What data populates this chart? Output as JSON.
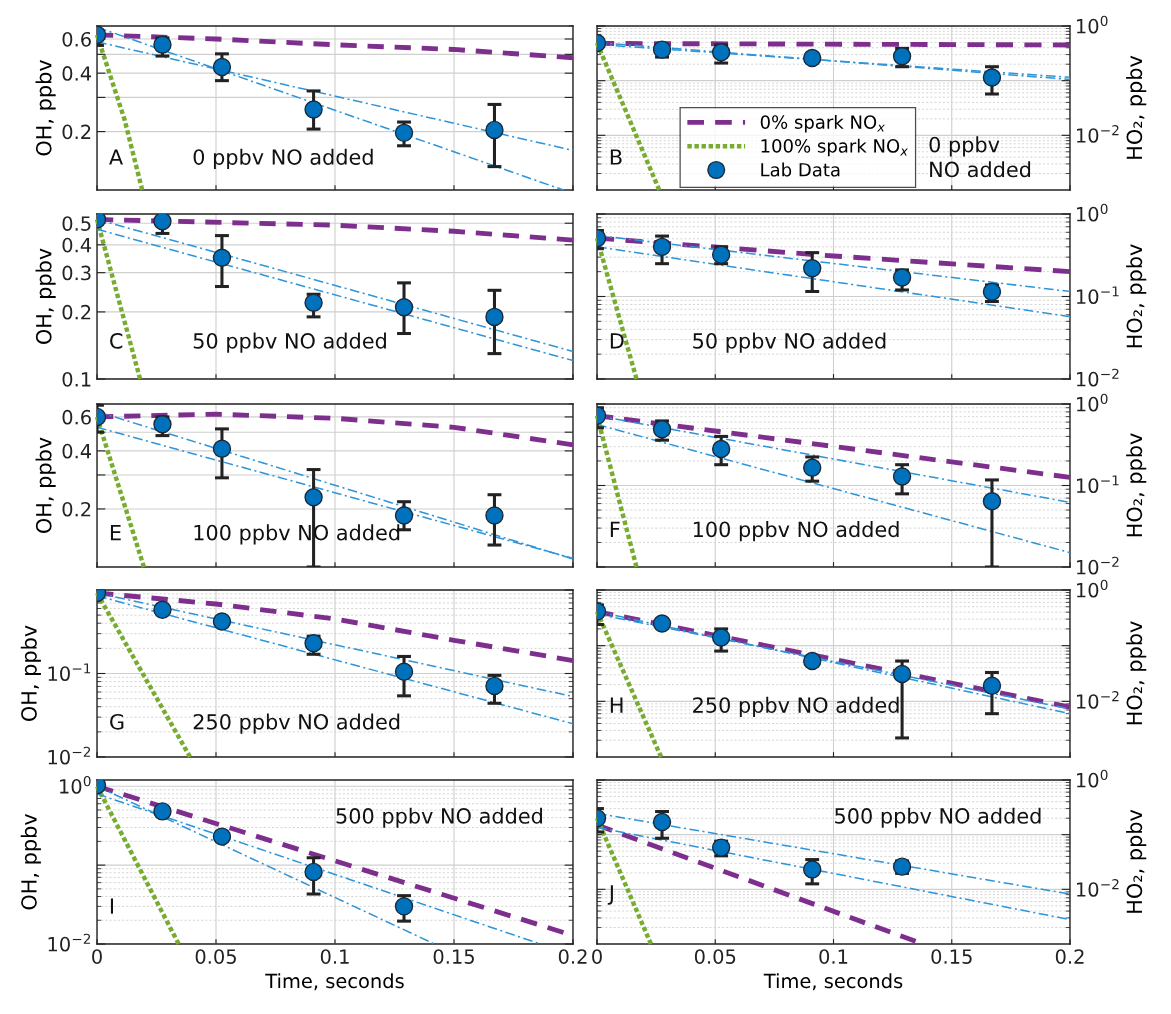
{
  "chart_data": [
    {
      "type": "line",
      "xlim": [
        0,
        0.2
      ],
      "xticks": [
        0,
        0.05,
        0.1,
        0.15,
        0.2
      ],
      "ylim": [
        0.1,
        0.7
      ],
      "yticks": [
        0.2,
        {
          "value": 0.3,
          "label": null
        },
        0.4,
        {
          "value": 0.5,
          "label": null
        },
        0.6
      ],
      "ylabel": "OH, ppbv",
      "log": "y",
      "grid": true,
      "tick_labels": "y",
      "annotations": [
        "A",
        "0 ppbv NO added"
      ],
      "series": [
        {
          "type": "line",
          "color": "#7e2f8e",
          "line_style": "dashed",
          "x": [
            0,
            0.05,
            0.1,
            0.15,
            0.2
          ],
          "values": [
            0.63,
            0.6,
            0.56,
            0.53,
            0.48
          ]
        },
        {
          "type": "line",
          "color": "#77ac30",
          "line_style": "dotted",
          "x": [
            0,
            0.0116,
            0.019
          ],
          "values": [
            0.63,
            0.23,
            0.1
          ]
        },
        {
          "type": "scatter",
          "color": "#0072bd",
          "marker": "circle",
          "x": [
            0,
            0.0275,
            0.0525,
            0.091,
            0.129,
            0.167
          ],
          "values": [
            0.63,
            0.56,
            0.43,
            0.26,
            0.197,
            0.204
          ],
          "errors": [
            [
              0.556,
              0.711
            ],
            [
              0.49,
              0.608
            ],
            [
              0.366,
              0.503
            ],
            [
              0.206,
              0.324
            ],
            [
              0.169,
              0.224
            ],
            [
              0.132,
              0.276
            ]
          ]
        },
        {
          "type": "line",
          "color": "#2f95d9",
          "line_style": "dashdot",
          "x": [
            0,
            0.196
          ],
          "values": [
            0.69,
            0.1
          ]
        },
        {
          "type": "line",
          "color": "#2f95d9",
          "line_style": "dashdot",
          "x": [
            0,
            0.2
          ],
          "values": [
            0.58,
            0.16
          ]
        }
      ]
    },
    {
      "type": "line",
      "xlim": [
        0,
        0.2
      ],
      "xticks": [
        0,
        0.05,
        0.1,
        0.15,
        0.2
      ],
      "ylim": [
        0.001,
        1
      ],
      "yticks": [
        {
          "value": 0.01,
          "label": "10$^{−2}$"
        },
        {
          "value": 0.1,
          "label": null
        },
        {
          "value": 1,
          "label": "10$^{0}$"
        }
      ],
      "ylabel": "HO₂, ppbv",
      "log": "y",
      "grid": true,
      "tick_labels": "y",
      "legend": "bottom left",
      "annotations": [
        "B",
        "0 ppbv\nNO added"
      ],
      "series": [
        {
          "name": "0% spark NO$_{x}$",
          "type": "line",
          "color": "#7e2f8e",
          "line_style": "dashed",
          "x": [
            0,
            0.2
          ],
          "values": [
            0.48,
            0.45
          ]
        },
        {
          "name": "100% spark NO$_{x}$",
          "type": "line",
          "color": "#77ac30",
          "line_style": "dotted",
          "x": [
            0,
            0.0263
          ],
          "values": [
            0.49,
            0.001
          ]
        },
        {
          "name": "Lab Data",
          "type": "scatter",
          "color": "#0072bd",
          "marker": "circle",
          "x": [
            0,
            0.0275,
            0.0525,
            0.091,
            0.129,
            0.167
          ],
          "values": [
            0.49,
            0.37,
            0.33,
            0.26,
            0.28,
            0.114
          ],
          "errors": [
            null,
            [
              0.27,
              0.45
            ],
            [
              0.21,
              0.45
            ],
            null,
            [
              0.18,
              0.39
            ],
            [
              0.057,
              0.18
            ]
          ]
        },
        {
          "type": "line",
          "color": "#2f95d9",
          "line_style": "dashdot",
          "x": [
            0,
            0.2
          ],
          "values": [
            0.5,
            0.105
          ]
        },
        {
          "type": "line",
          "color": "#2f95d9",
          "line_style": "dashdot",
          "x": [
            0,
            0.2
          ],
          "values": [
            0.46,
            0.115
          ]
        }
      ]
    },
    {
      "type": "line",
      "xlim": [
        0,
        0.2
      ],
      "xticks": [
        0,
        0.05,
        0.1,
        0.15,
        0.2
      ],
      "ylim": [
        0.1,
        0.55
      ],
      "yticks": [
        0.1,
        0.2,
        0.3,
        0.4,
        0.5
      ],
      "ylabel": "OH, ppbv",
      "log": "y",
      "grid": true,
      "tick_labels": "y",
      "annotations": [
        "C",
        "50 ppbv NO added"
      ],
      "series": [
        {
          "type": "line",
          "color": "#7e2f8e",
          "line_style": "dashed",
          "x": [
            0,
            0.1,
            0.15,
            0.2
          ],
          "values": [
            0.52,
            0.49,
            0.46,
            0.42
          ]
        },
        {
          "type": "line",
          "color": "#77ac30",
          "line_style": "dotted",
          "x": [
            0,
            0.0181
          ],
          "values": [
            0.52,
            0.1
          ]
        },
        {
          "type": "scatter",
          "color": "#0072bd",
          "marker": "circle",
          "x": [
            0,
            0.0275,
            0.0525,
            0.091,
            0.129,
            0.167
          ],
          "values": [
            0.52,
            0.51,
            0.35,
            0.22,
            0.21,
            0.19
          ],
          "errors": [
            null,
            [
              0.45,
              0.56
            ],
            [
              0.26,
              0.44
            ],
            [
              0.19,
              0.24
            ],
            [
              0.16,
              0.27
            ],
            [
              0.13,
              0.25
            ]
          ]
        },
        {
          "type": "line",
          "color": "#2f95d9",
          "line_style": "dashdot",
          "x": [
            0,
            0.2
          ],
          "values": [
            0.52,
            0.133
          ]
        },
        {
          "type": "line",
          "color": "#2f95d9",
          "line_style": "dashdot",
          "x": [
            0,
            0.2
          ],
          "values": [
            0.47,
            0.121
          ]
        }
      ]
    },
    {
      "type": "line",
      "xlim": [
        0,
        0.2
      ],
      "xticks": [
        0,
        0.05,
        0.1,
        0.15,
        0.2
      ],
      "ylim": [
        0.01,
        1
      ],
      "yticks": [
        {
          "value": 0.01,
          "label": "10$^{−2}$"
        },
        {
          "value": 0.1,
          "label": "10$^{−1}$"
        },
        {
          "value": 1,
          "label": "10$^{0}$"
        }
      ],
      "ylabel": "HO₂, ppbv",
      "log": "y",
      "grid": true,
      "tick_labels": "y",
      "annotations": [
        "D",
        "50 ppbv NO added"
      ],
      "series": [
        {
          "type": "line",
          "color": "#7e2f8e",
          "line_style": "dashed",
          "x": [
            0,
            0.1,
            0.2
          ],
          "values": [
            0.51,
            0.31,
            0.2
          ]
        },
        {
          "type": "line",
          "color": "#77ac30",
          "line_style": "dotted",
          "x": [
            0,
            0.0167
          ],
          "values": [
            0.51,
            0.01
          ]
        },
        {
          "type": "scatter",
          "color": "#0072bd",
          "marker": "circle",
          "x": [
            0,
            0.0275,
            0.0525,
            0.091,
            0.129,
            0.167
          ],
          "values": [
            0.51,
            0.4,
            0.32,
            0.22,
            0.17,
            0.114
          ],
          "errors": [
            [
              0.38,
              0.63
            ],
            [
              0.25,
              0.54
            ],
            [
              0.25,
              0.4
            ],
            [
              0.115,
              0.34
            ],
            [
              0.12,
              0.21
            ],
            [
              0.087,
              0.138
            ]
          ]
        },
        {
          "type": "line",
          "color": "#2f95d9",
          "line_style": "dashdot",
          "x": [
            0,
            0.2
          ],
          "values": [
            0.55,
            0.115
          ]
        },
        {
          "type": "line",
          "color": "#2f95d9",
          "line_style": "dashdot",
          "x": [
            0,
            0.2
          ],
          "values": [
            0.4,
            0.057
          ]
        }
      ]
    },
    {
      "type": "line",
      "xlim": [
        0,
        0.2
      ],
      "xticks": [
        0,
        0.05,
        0.1,
        0.15,
        0.2
      ],
      "ylim": [
        0.1,
        0.7
      ],
      "yticks": [
        0.2,
        {
          "value": 0.3,
          "label": null
        },
        0.4,
        {
          "value": 0.5,
          "label": null
        },
        0.6
      ],
      "ylabel": "OH, ppbv",
      "log": "y",
      "grid": true,
      "tick_labels": "y",
      "annotations": [
        "E",
        "100 ppbv NO added"
      ],
      "series": [
        {
          "type": "line",
          "color": "#7e2f8e",
          "line_style": "dashed",
          "x": [
            0,
            0.05,
            0.1,
            0.15,
            0.2
          ],
          "values": [
            0.6,
            0.62,
            0.59,
            0.53,
            0.43
          ]
        },
        {
          "type": "line",
          "color": "#77ac30",
          "line_style": "dotted",
          "x": [
            0,
            0.0197
          ],
          "values": [
            0.6,
            0.1
          ]
        },
        {
          "type": "scatter",
          "color": "#0072bd",
          "marker": "circle",
          "x": [
            0,
            0.0275,
            0.0525,
            0.091,
            0.129,
            0.167
          ],
          "values": [
            0.6,
            0.55,
            0.41,
            0.23,
            0.185,
            0.185
          ],
          "errors": [
            [
              0.5,
              0.69
            ],
            [
              0.48,
              0.6
            ],
            [
              0.29,
              0.52
            ],
            [
              0.1,
              0.32
            ],
            [
              0.156,
              0.218
            ],
            [
              0.13,
              0.237
            ]
          ]
        },
        {
          "type": "line",
          "color": "#2f95d9",
          "line_style": "dashdot",
          "x": [
            0,
            0.2
          ],
          "values": [
            0.64,
            0.11
          ]
        },
        {
          "type": "line",
          "color": "#2f95d9",
          "line_style": "dashdot",
          "x": [
            0,
            0.2
          ],
          "values": [
            0.53,
            0.111
          ]
        }
      ]
    },
    {
      "type": "line",
      "xlim": [
        0,
        0.2
      ],
      "xticks": [
        0,
        0.05,
        0.1,
        0.15,
        0.2
      ],
      "ylim": [
        0.01,
        1
      ],
      "yticks": [
        {
          "value": 0.01,
          "label": "10$^{−2}$"
        },
        {
          "value": 0.1,
          "label": "10$^{−1}$"
        },
        {
          "value": 1,
          "label": "10$^{0}$"
        }
      ],
      "ylabel": "HO₂, ppbv",
      "log": "y",
      "grid": true,
      "tick_labels": "y",
      "annotations": [
        "F",
        "100 ppbv NO added"
      ],
      "series": [
        {
          "type": "line",
          "color": "#7e2f8e",
          "line_style": "dashed",
          "x": [
            0,
            0.2
          ],
          "values": [
            0.72,
            0.126
          ]
        },
        {
          "type": "line",
          "color": "#77ac30",
          "line_style": "dotted",
          "x": [
            0,
            0.0167
          ],
          "values": [
            0.72,
            0.01
          ]
        },
        {
          "type": "scatter",
          "color": "#0072bd",
          "marker": "circle",
          "x": [
            0,
            0.0275,
            0.0525,
            0.091,
            0.129,
            0.167
          ],
          "values": [
            0.72,
            0.49,
            0.28,
            0.165,
            0.129,
            0.064
          ],
          "errors": [
            [
              0.51,
              0.9
            ],
            [
              0.36,
              0.62
            ],
            [
              0.18,
              0.4
            ],
            [
              0.113,
              0.224
            ],
            [
              0.079,
              0.18
            ],
            [
              0.01,
              0.117
            ]
          ]
        },
        {
          "type": "line",
          "color": "#2f95d9",
          "line_style": "dashdot",
          "x": [
            0,
            0.2
          ],
          "values": [
            0.72,
            0.062
          ]
        },
        {
          "type": "line",
          "color": "#2f95d9",
          "line_style": "dashdot",
          "x": [
            0,
            0.2
          ],
          "values": [
            0.56,
            0.015
          ]
        }
      ]
    },
    {
      "type": "line",
      "xlim": [
        0,
        0.2
      ],
      "xticks": [
        0,
        0.05,
        0.1,
        0.15,
        0.2
      ],
      "ylim": [
        0.01,
        1
      ],
      "yticks": [
        {
          "value": 0.01,
          "label": "10$^{−2}$"
        },
        {
          "value": 0.1,
          "label": "10$^{−1}$"
        },
        {
          "value": 1,
          "label": null
        }
      ],
      "ylabel": "OH, ppbv",
      "log": "y",
      "grid": true,
      "tick_labels": "y",
      "annotations": [
        "G",
        "250 ppbv NO added"
      ],
      "series": [
        {
          "type": "line",
          "color": "#7e2f8e",
          "line_style": "dashed",
          "x": [
            0,
            0.05,
            0.1,
            0.15,
            0.2
          ],
          "values": [
            0.92,
            0.68,
            0.45,
            0.25,
            0.143
          ]
        },
        {
          "type": "line",
          "color": "#77ac30",
          "line_style": "dotted",
          "x": [
            0,
            0.0391
          ],
          "values": [
            0.92,
            0.01
          ]
        },
        {
          "type": "scatter",
          "color": "#0072bd",
          "marker": "circle",
          "x": [
            0,
            0.0275,
            0.0525,
            0.091,
            0.129,
            0.167
          ],
          "values": [
            0.92,
            0.58,
            0.42,
            0.23,
            0.105,
            0.071
          ],
          "errors": [
            null,
            null,
            null,
            [
              0.17,
              0.28
            ],
            [
              0.054,
              0.16
            ],
            [
              0.044,
              0.095
            ]
          ]
        },
        {
          "type": "line",
          "color": "#2f95d9",
          "line_style": "dashdot",
          "x": [
            0,
            0.2
          ],
          "values": [
            0.92,
            0.053
          ]
        },
        {
          "type": "line",
          "color": "#2f95d9",
          "line_style": "dashdot",
          "x": [
            0,
            0.2
          ],
          "values": [
            0.85,
            0.025
          ]
        }
      ]
    },
    {
      "type": "line",
      "xlim": [
        0,
        0.2
      ],
      "xticks": [
        0,
        0.05,
        0.1,
        0.15,
        0.2
      ],
      "ylim": [
        0.001,
        1
      ],
      "yticks": [
        {
          "value": 0.01,
          "label": "10$^{−2}$"
        },
        {
          "value": 0.1,
          "label": null
        },
        {
          "value": 1,
          "label": "10$^{0}$"
        }
      ],
      "ylabel": "HO₂, ppbv",
      "log": "y",
      "grid": true,
      "tick_labels": "y",
      "annotations": [
        "H",
        "250 ppbv NO added"
      ],
      "series": [
        {
          "type": "line",
          "color": "#7e2f8e",
          "line_style": "dashed",
          "x": [
            0,
            0.2
          ],
          "values": [
            0.41,
            0.0079
          ]
        },
        {
          "type": "line",
          "color": "#77ac30",
          "line_style": "dotted",
          "x": [
            0,
            0.0271
          ],
          "values": [
            0.41,
            0.001
          ]
        },
        {
          "type": "scatter",
          "color": "#0072bd",
          "marker": "circle",
          "x": [
            0,
            0.0275,
            0.0525,
            0.091,
            0.129,
            0.167
          ],
          "values": [
            0.41,
            0.25,
            0.14,
            0.053,
            0.031,
            0.019
          ],
          "errors": [
            [
              0.24,
              0.54
            ],
            null,
            [
              0.08,
              0.2
            ],
            null,
            [
              0.0022,
              0.053
            ],
            [
              0.006,
              0.033
            ]
          ]
        },
        {
          "type": "line",
          "color": "#2f95d9",
          "line_style": "dashdot",
          "x": [
            0,
            0.2
          ],
          "values": [
            0.41,
            0.006
          ]
        },
        {
          "type": "line",
          "color": "#2f95d9",
          "line_style": "dashdot",
          "x": [
            0,
            0.2
          ],
          "values": [
            0.37,
            0.0073
          ]
        }
      ]
    },
    {
      "type": "line",
      "xlim": [
        0,
        0.2
      ],
      "xticks": [
        0,
        0.05,
        0.1,
        0.15,
        0.2
      ],
      "ylim": [
        0.01,
        1.2
      ],
      "yticks": [
        {
          "value": 0.01,
          "label": "10$^{−2}$"
        },
        {
          "value": 0.1,
          "label": null
        },
        {
          "value": 1,
          "label": "10$^{0}$"
        }
      ],
      "xlabel": "Time, seconds",
      "ylabel": "OH, ppbv",
      "log": "y",
      "grid": true,
      "annotations": [
        "I",
        "500 ppbv NO added"
      ],
      "series": [
        {
          "type": "line",
          "color": "#7e2f8e",
          "line_style": "dashed",
          "x": [
            0,
            0.196
          ],
          "values": [
            1.0,
            0.014
          ]
        },
        {
          "type": "line",
          "color": "#77ac30",
          "line_style": "dotted",
          "x": [
            0,
            0.0343
          ],
          "values": [
            1.0,
            0.01
          ]
        },
        {
          "type": "scatter",
          "color": "#0072bd",
          "marker": "circle",
          "x": [
            0,
            0.0275,
            0.0525,
            0.091,
            0.129
          ],
          "values": [
            1.03,
            0.48,
            0.23,
            0.082,
            0.03
          ],
          "errors": [
            null,
            null,
            null,
            [
              0.043,
              0.124
            ],
            [
              0.0195,
              0.041
            ]
          ]
        },
        {
          "type": "line",
          "color": "#2f95d9",
          "line_style": "dashdot",
          "x": [
            0,
            0.1418
          ],
          "values": [
            1.0,
            0.01
          ]
        },
        {
          "type": "line",
          "color": "#2f95d9",
          "line_style": "dashdot",
          "x": [
            0,
            0.1863
          ],
          "values": [
            0.8,
            0.01
          ]
        }
      ]
    },
    {
      "type": "line",
      "xlim": [
        0,
        0.2
      ],
      "xticks": [
        0,
        0.05,
        0.1,
        0.15,
        0.2
      ],
      "ylim": [
        0.001,
        1
      ],
      "yticks": [
        {
          "value": 0.01,
          "label": "10$^{−2}$"
        },
        {
          "value": 0.1,
          "label": null
        },
        {
          "value": 1,
          "label": "10$^{0}$"
        }
      ],
      "xlabel": "Time, seconds",
      "ylabel": "HO₂, ppbv",
      "log": "y",
      "grid": true,
      "annotations": [
        "J",
        "500 ppbv NO added"
      ],
      "series": [
        {
          "type": "line",
          "color": "#7e2f8e",
          "line_style": "dashed",
          "x": [
            0,
            0.1347
          ],
          "values": [
            0.15,
            0.00112
          ]
        },
        {
          "type": "line",
          "color": "#77ac30",
          "line_style": "dotted",
          "x": [
            0,
            0.0228
          ],
          "values": [
            0.2,
            0.001
          ]
        },
        {
          "type": "scatter",
          "color": "#0072bd",
          "marker": "circle",
          "x": [
            0,
            0.0275,
            0.0525,
            0.091,
            0.129
          ],
          "values": [
            0.2,
            0.17,
            0.058,
            0.023,
            0.026
          ],
          "errors": [
            [
              0.112,
              0.3
            ],
            [
              0.086,
              0.265
            ],
            [
              0.041,
              0.076
            ],
            [
              0.0126,
              0.035
            ],
            [
              0.0196,
              0.033
            ]
          ]
        },
        {
          "type": "line",
          "color": "#2f95d9",
          "line_style": "dashdot",
          "x": [
            0,
            0.2
          ],
          "values": [
            0.245,
            0.0082
          ]
        },
        {
          "type": "line",
          "color": "#2f95d9",
          "line_style": "dashdot",
          "x": [
            0,
            0.2
          ],
          "values": [
            0.136,
            0.0028
          ]
        }
      ]
    }
  ]
}
